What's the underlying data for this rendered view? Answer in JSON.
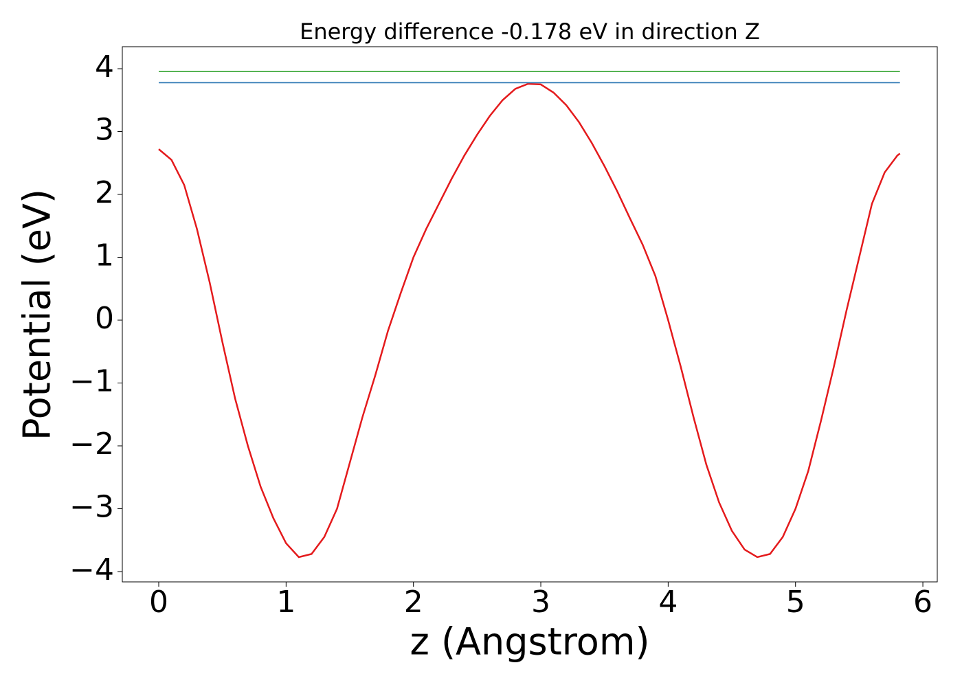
{
  "chart_data": {
    "type": "line",
    "title": "Energy difference -0.178 eV in direction Z",
    "xlabel": "z (Angstrom)",
    "ylabel": "Potential (eV)",
    "xlim": [
      -0.286,
      6.113
    ],
    "ylim": [
      -4.164,
      4.35
    ],
    "xticks": [
      0,
      1,
      2,
      3,
      4,
      5,
      6
    ],
    "yticks": [
      {
        "value": -4,
        "label": "−4"
      },
      {
        "value": -3,
        "label": "−3"
      },
      {
        "value": -2,
        "label": "−2"
      },
      {
        "value": -1,
        "label": "−1"
      },
      0,
      1,
      2,
      3,
      4
    ],
    "series": [
      {
        "color": "#e41a1c",
        "x": [
          0,
          0.1,
          0.2,
          0.3,
          0.4,
          0.5,
          0.6,
          0.7,
          0.8,
          0.9,
          1.0,
          1.1,
          1.2,
          1.3,
          1.4,
          1.5,
          1.6,
          1.7,
          1.8,
          1.9,
          2.0,
          2.1,
          2.2,
          2.3,
          2.4,
          2.5,
          2.6,
          2.7,
          2.8,
          2.9,
          3.0,
          3.1,
          3.2,
          3.3,
          3.4,
          3.5,
          3.6,
          3.7,
          3.8,
          3.9,
          4.0,
          4.1,
          4.2,
          4.3,
          4.4,
          4.5,
          4.6,
          4.7,
          4.8,
          4.9,
          5.0,
          5.1,
          5.2,
          5.3,
          5.4,
          5.5,
          5.6,
          5.7,
          5.8,
          5.82
        ],
        "values": [
          2.72,
          2.55,
          2.15,
          1.45,
          0.6,
          -0.35,
          -1.25,
          -2.0,
          -2.65,
          -3.15,
          -3.55,
          -3.77,
          -3.72,
          -3.45,
          -3.0,
          -2.27,
          -1.54,
          -0.88,
          -0.17,
          0.43,
          1.0,
          1.45,
          1.85,
          2.25,
          2.62,
          2.95,
          3.25,
          3.5,
          3.68,
          3.76,
          3.75,
          3.62,
          3.42,
          3.15,
          2.82,
          2.45,
          2.05,
          1.62,
          1.2,
          0.7,
          0.0,
          -0.75,
          -1.55,
          -2.3,
          -2.9,
          -3.35,
          -3.65,
          -3.77,
          -3.72,
          -3.45,
          -3.0,
          -2.4,
          -1.6,
          -0.75,
          0.15,
          1.0,
          1.85,
          2.35,
          2.62,
          2.65
        ]
      },
      {
        "color": "#4daf4a",
        "x": [
          0,
          5.82
        ],
        "values": [
          3.956,
          3.956
        ]
      },
      {
        "color": "#377eb8",
        "x": [
          0,
          5.82
        ],
        "values": [
          3.778,
          3.778
        ]
      }
    ]
  }
}
